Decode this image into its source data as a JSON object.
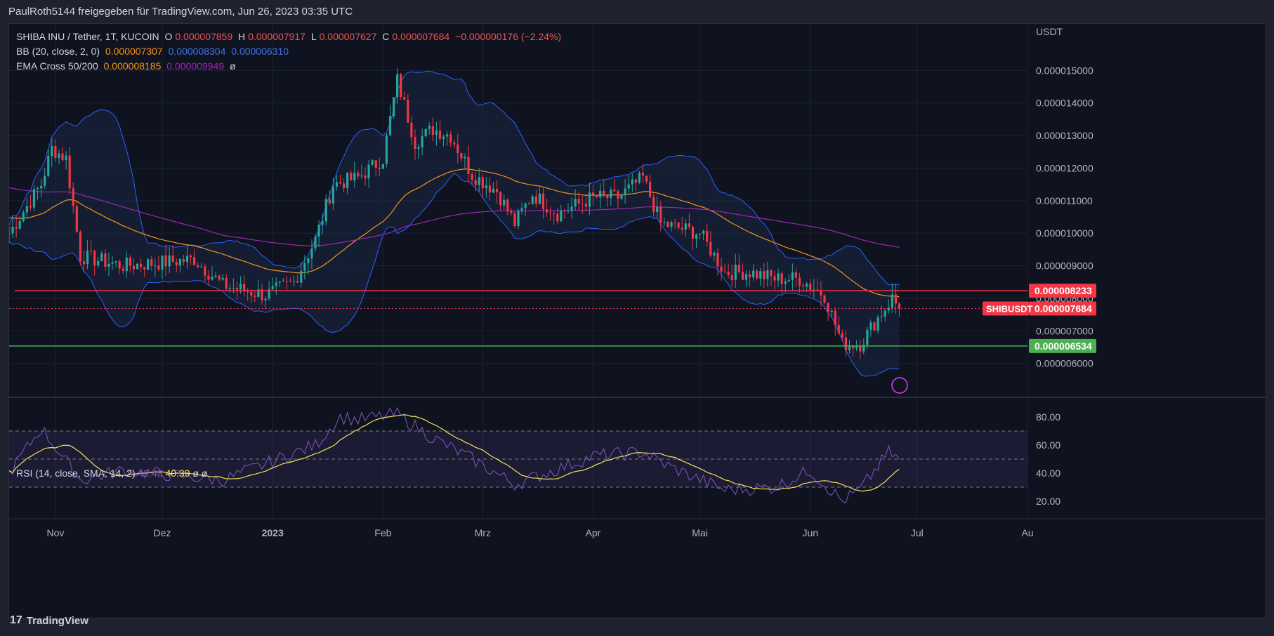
{
  "header": {
    "publisher": "PaulRoth5144 freigegeben für TradingView.com, Jun 26, 2023 03:35 UTC"
  },
  "legend": {
    "symbol": "SHIBA INU / Tether, 1T, KUCOIN",
    "o_label": "O",
    "o": "0.000007859",
    "h_label": "H",
    "h": "0.000007917",
    "l_label": "L",
    "l": "0.000007627",
    "c_label": "C",
    "c": "0.000007684",
    "chg": "−0.000000176 (−2.24%)",
    "bb_label": "BB (20, close, 2, 0)",
    "bb_mid": "0.000007307",
    "bb_up": "0.000008304",
    "bb_low": "0.000006310",
    "ema_label": "EMA Cross 50/200",
    "ema50": "0.000008185",
    "ema200": "0.000009949",
    "ema_extra": "ø",
    "rsi_label": "RSI (14, close, SMA, 14, 2)",
    "rsi": "49.48",
    "rsi_sma": "40.39",
    "rsi_x1": "ø",
    "rsi_x2": "ø"
  },
  "axis": {
    "currency": "USDT",
    "price_ticks": [
      "0.000015000",
      "0.000014000",
      "0.000013000",
      "0.000012000",
      "0.000011000",
      "0.000010000",
      "0.000009000",
      "0.000008000",
      "0.000007000",
      "0.000006000"
    ],
    "price_values": [
      15,
      14,
      13,
      12,
      11,
      10,
      9,
      8,
      7,
      6
    ],
    "rsi_ticks": [
      "80.00",
      "60.00",
      "40.00",
      "20.00"
    ],
    "rsi_values": [
      80,
      60,
      40,
      20
    ],
    "time_ticks": [
      "Nov",
      "Dez",
      "2023",
      "Feb",
      "Mrz",
      "Apr",
      "Mai",
      "Jun",
      "Jul",
      "Au"
    ]
  },
  "markers": {
    "resistance": "0.000008233",
    "symbol_tag": "SHIBUSDT",
    "last": "0.000007684",
    "support": "0.000006534"
  },
  "colors": {
    "up": "#26a69a",
    "down": "#f23645",
    "bb": "#2962ff",
    "ema50": "#f7931a",
    "ema200": "#9c27b0",
    "rsi": "#7e57c2",
    "rsi_sma": "#f5e15a",
    "resistance": "#f23645",
    "support": "#4caf50"
  },
  "chart_data": {
    "type": "line",
    "title": "SHIBA INU / Tether, 1T, KUCOIN",
    "ylabel": "USDT",
    "price_unit_multiplier": 1e-06,
    "ylim": [
      5.0,
      16.0
    ],
    "price_keypoints": [
      [
        "2022-10-19",
        10.0
      ],
      [
        "2022-10-28",
        11.5
      ],
      [
        "2022-10-31",
        12.6
      ],
      [
        "2022-11-04",
        12.3
      ],
      [
        "2022-11-08",
        9.3
      ],
      [
        "2022-11-20",
        9.0
      ],
      [
        "2022-12-01",
        9.1
      ],
      [
        "2022-12-10",
        9.2
      ],
      [
        "2022-12-18",
        8.4
      ],
      [
        "2022-12-30",
        8.1
      ],
      [
        "2023-01-07",
        8.5
      ],
      [
        "2023-01-13",
        9.8
      ],
      [
        "2023-01-18",
        11.5
      ],
      [
        "2023-01-25",
        11.7
      ],
      [
        "2023-02-01",
        12.3
      ],
      [
        "2023-02-05",
        14.7
      ],
      [
        "2023-02-10",
        12.8
      ],
      [
        "2023-02-15",
        13.2
      ],
      [
        "2023-02-20",
        13.0
      ],
      [
        "2023-02-26",
        11.8
      ],
      [
        "2023-03-05",
        11.3
      ],
      [
        "2023-03-10",
        10.3
      ],
      [
        "2023-03-15",
        11.2
      ],
      [
        "2023-03-22",
        10.6
      ],
      [
        "2023-04-01",
        11.1
      ],
      [
        "2023-04-08",
        11.1
      ],
      [
        "2023-04-15",
        11.7
      ],
      [
        "2023-04-20",
        10.3
      ],
      [
        "2023-05-01",
        10.0
      ],
      [
        "2023-05-08",
        8.8
      ],
      [
        "2023-05-15",
        8.8
      ],
      [
        "2023-05-22",
        8.6
      ],
      [
        "2023-05-29",
        8.6
      ],
      [
        "2023-06-05",
        8.1
      ],
      [
        "2023-06-10",
        6.6
      ],
      [
        "2023-06-15",
        6.6
      ],
      [
        "2023-06-20",
        7.4
      ],
      [
        "2023-06-24",
        8.0
      ],
      [
        "2023-06-26",
        7.684
      ]
    ],
    "rsi_keypoints": [
      [
        "2022-10-19",
        40
      ],
      [
        "2022-10-28",
        72
      ],
      [
        "2022-11-08",
        35
      ],
      [
        "2022-11-20",
        42
      ],
      [
        "2022-12-18",
        35
      ],
      [
        "2023-01-13",
        60
      ],
      [
        "2023-01-20",
        80
      ],
      [
        "2023-01-25",
        78
      ],
      [
        "2023-02-05",
        82
      ],
      [
        "2023-02-15",
        65
      ],
      [
        "2023-02-26",
        50
      ],
      [
        "2023-03-10",
        32
      ],
      [
        "2023-04-01",
        52
      ],
      [
        "2023-04-15",
        55
      ],
      [
        "2023-04-22",
        45
      ],
      [
        "2023-05-08",
        28
      ],
      [
        "2023-05-22",
        30
      ],
      [
        "2023-06-01",
        42
      ],
      [
        "2023-06-10",
        20
      ],
      [
        "2023-06-15",
        28
      ],
      [
        "2023-06-23",
        55
      ],
      [
        "2023-06-26",
        49.48
      ]
    ],
    "rsi_ylim": [
      10,
      90
    ]
  }
}
